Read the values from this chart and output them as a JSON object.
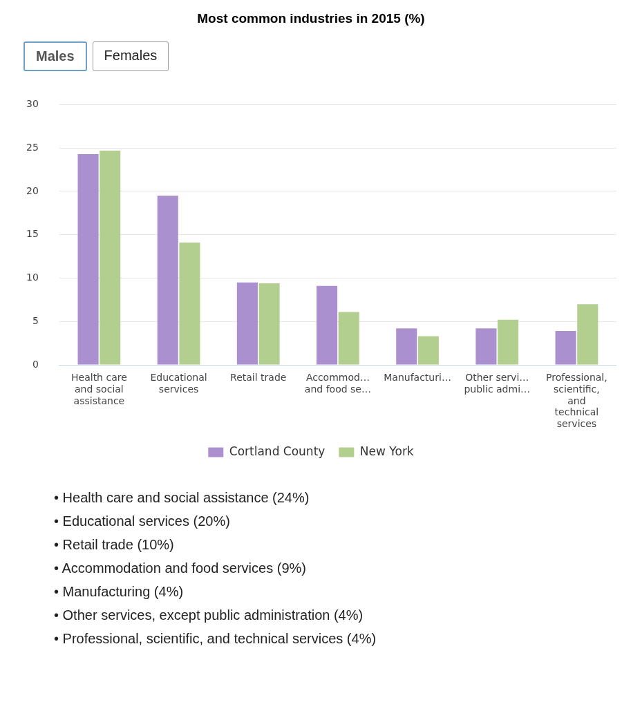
{
  "chart_data": {
    "type": "bar",
    "title": "Most common industries in 2015 (%)",
    "categories": [
      "Health care and social assistance",
      "Educational services",
      "Retail trade",
      "Accommod… and food se…",
      "Manufacturi…",
      "Other servi… public admi…",
      "Professional, scientific, and technical services"
    ],
    "series": [
      {
        "name": "Cortland County",
        "color": "#ab90d0",
        "values": [
          24.3,
          19.5,
          9.5,
          9.1,
          4.2,
          4.2,
          3.9
        ]
      },
      {
        "name": "New York",
        "color": "#b3cf8f",
        "values": [
          24.7,
          14.1,
          9.4,
          6.1,
          3.3,
          5.2,
          7.0
        ]
      }
    ],
    "ylim": [
      0,
      30
    ],
    "yticks": [
      0,
      5,
      10,
      15,
      20,
      25,
      30
    ],
    "grid": "y",
    "legend": "bottom",
    "annotations": [
      "Males",
      "Females",
      "• Health care and social assistance (24%)",
      "• Educational services (20%)",
      "• Retail trade (10%)",
      "• Accommodation and food services (9%)",
      "• Manufacturing (4%)",
      "• Other services, except public administration (4%)",
      "• Professional, scientific, and technical services (4%)"
    ]
  }
}
